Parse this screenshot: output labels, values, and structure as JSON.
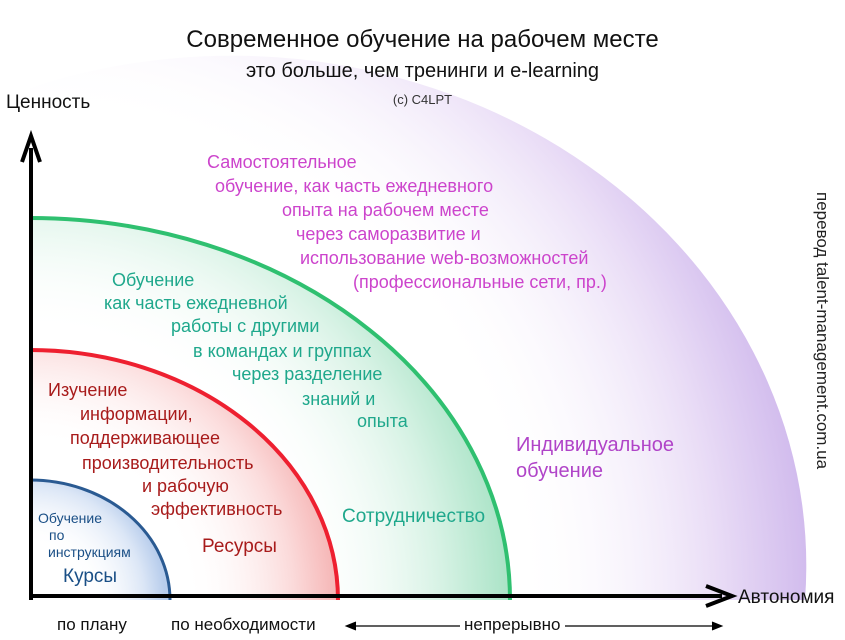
{
  "header": {
    "title": "Современное обучение на рабочем месте",
    "subtitle": "это больше, чем тренинги и e-learning",
    "copyright": "(c) C4LPT"
  },
  "axes": {
    "y_label": "Ценность",
    "x_label": "Автономия"
  },
  "side_note": "перевод talent-management.com.ua",
  "zones": {
    "self": {
      "lines": [
        "Самостоятельное",
        "обучение, как часть ежедневного",
        "опыта на рабочем месте",
        "через саморазвитие и",
        "использование web-возможностей",
        "(профессиональные сети, пр.)"
      ],
      "label": "Индивидуальное обучение",
      "label_lines": [
        "Индивидуальное",
        "обучение"
      ],
      "color": "#b044c8"
    },
    "collab": {
      "lines": [
        "Обучение",
        "как часть ежедневной",
        "работы с другими",
        "в командах и группах",
        "через разделение",
        "знаний и",
        "опыта"
      ],
      "label": "Сотрудничество",
      "color": "#1fa88c"
    },
    "resources": {
      "lines": [
        "Изучение",
        "информации,",
        "поддерживающее",
        "производительность",
        "и рабочую",
        "эффективность"
      ],
      "label": "Ресурсы",
      "color": "#a81b1b"
    },
    "courses": {
      "lines": [
        "Обучение",
        "по",
        "инструкциям"
      ],
      "label": "Курсы",
      "color": "#1a4f86"
    }
  },
  "bottom_axis": {
    "planned": "по плану",
    "on_demand": "по необходимости",
    "continuous": "непрерывно"
  }
}
